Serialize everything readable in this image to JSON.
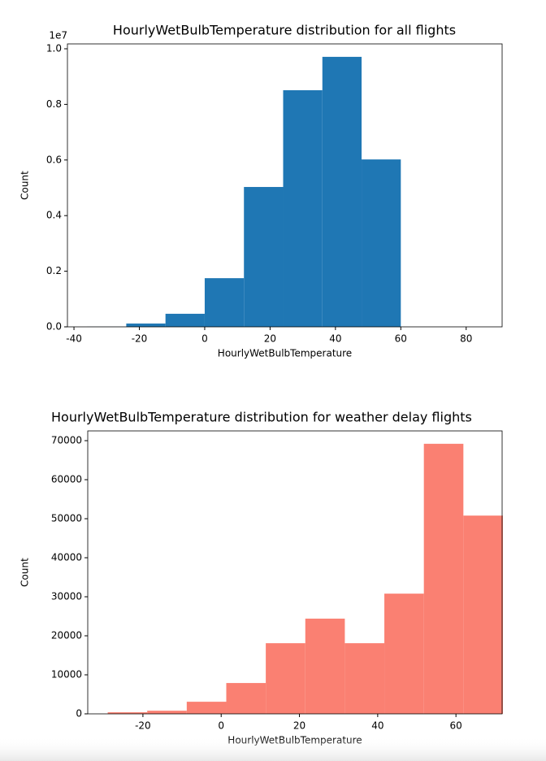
{
  "chart_data": [
    {
      "type": "histogram",
      "title": "HourlyWetBulbTemperature distribution for all flights",
      "x_label": "HourlyWetBulbTemperature",
      "y_label": "Count",
      "y_offset_label": "1e7",
      "color": "#1f77b4",
      "bins": [
        -36,
        -24,
        -12,
        0,
        12,
        24,
        36,
        48,
        60,
        72
      ],
      "values": [
        3000,
        120000,
        470000,
        1750000,
        5030000,
        8510000,
        9710000,
        6020000,
        0
      ],
      "xlim": [
        -42,
        91
      ],
      "ylim": [
        0,
        10175000
      ],
      "xticks": [
        -40,
        -20,
        0,
        20,
        40,
        60,
        80
      ],
      "yticks": [
        {
          "value": 0,
          "label": "0.0"
        },
        {
          "value": 2000000,
          "label": "0.2"
        },
        {
          "value": 4000000,
          "label": "0.4"
        },
        {
          "value": 6000000,
          "label": "0.6"
        },
        {
          "value": 8000000,
          "label": "0.8"
        },
        {
          "value": 10000000,
          "label": "1.0"
        }
      ]
    },
    {
      "type": "histogram",
      "title": "HourlyWetBulbTemperature distribution for weather delay flights",
      "x_label": "HourlyWetBulbTemperature",
      "y_label": "Count",
      "color": "#fa8072",
      "bins": [
        -29.0,
        -18.9,
        -8.8,
        1.3,
        11.4,
        21.5,
        31.6,
        41.7,
        51.8,
        61.9,
        72.0
      ],
      "values": [
        400,
        800,
        3100,
        7900,
        18100,
        24400,
        18100,
        30800,
        69200,
        50800
      ],
      "xlim": [
        -34.1,
        71.8
      ],
      "ylim": [
        0,
        72500
      ],
      "xticks": [
        -20,
        0,
        20,
        40,
        60
      ],
      "yticks": [
        0,
        10000,
        20000,
        30000,
        40000,
        50000,
        60000,
        70000
      ]
    }
  ]
}
